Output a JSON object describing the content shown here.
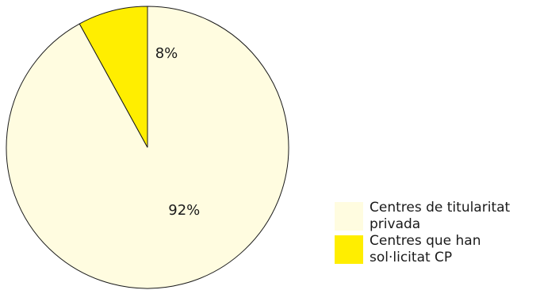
{
  "chart_data": {
    "type": "pie",
    "title": "",
    "slices": [
      {
        "name": "Centres de titularitat privada",
        "value": 92,
        "label": "92%",
        "color": "#FFFCE0"
      },
      {
        "name": "Centres que han sol·licitat CP",
        "value": 8,
        "label": "8%",
        "color": "#FFEE00"
      }
    ],
    "start_angle_deg": 0,
    "direction": "clockwise",
    "legend_position": "bottom-right",
    "edge_color": "#1a1a1a"
  },
  "legend": {
    "items": [
      {
        "label": "Centres de titularitat privada",
        "color": "#FFFCE0"
      },
      {
        "label": "Centres que han sol·licitat CP",
        "color": "#FFEE00"
      }
    ]
  }
}
